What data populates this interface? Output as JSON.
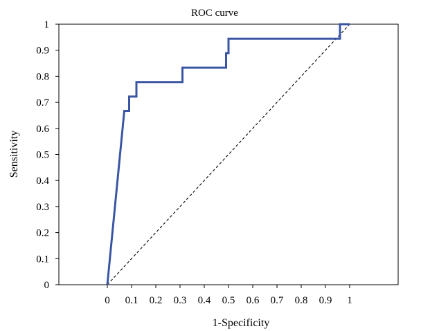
{
  "chart_data": {
    "type": "line",
    "title": "ROC curve",
    "xlabel": "1-Specificity",
    "ylabel": "Sensitivity",
    "xlim": [
      -0.2,
      1.2
    ],
    "ylim": [
      0,
      1
    ],
    "x_ticks": [
      "0",
      "0.1",
      "0.2",
      "0.3",
      "0.4",
      "0.5",
      "0.6",
      "0.7",
      "0.8",
      "0.9",
      "1"
    ],
    "x_tick_values": [
      0,
      0.1,
      0.2,
      0.3,
      0.4,
      0.5,
      0.6,
      0.7,
      0.8,
      0.9,
      1
    ],
    "y_ticks": [
      "0",
      "0.1",
      "0.2",
      "0.3",
      "0.4",
      "0.5",
      "0.6",
      "0.7",
      "0.8",
      "0.9",
      "1"
    ],
    "y_tick_values": [
      0,
      0.1,
      0.2,
      0.3,
      0.4,
      0.5,
      0.6,
      0.7,
      0.8,
      0.9,
      1
    ],
    "grid": false,
    "legend": "none",
    "series": [
      {
        "style": "solid",
        "color": "#3a55a4",
        "x": [
          0,
          0.07,
          0.09,
          0.09,
          0.105,
          0.105,
          0.12,
          0.12,
          0.31,
          0.31,
          0.49,
          0.49,
          0.5,
          0.5,
          0.95,
          0.96,
          0.96,
          1
        ],
        "y": [
          0,
          0.667,
          0.667,
          0.722,
          0.722,
          0.722,
          0.722,
          0.778,
          0.778,
          0.833,
          0.833,
          0.889,
          0.889,
          0.944,
          0.944,
          0.944,
          1,
          1
        ]
      },
      {
        "style": "dashed",
        "color": "#000000",
        "x": [
          0,
          1
        ],
        "y": [
          0,
          1
        ]
      }
    ]
  }
}
